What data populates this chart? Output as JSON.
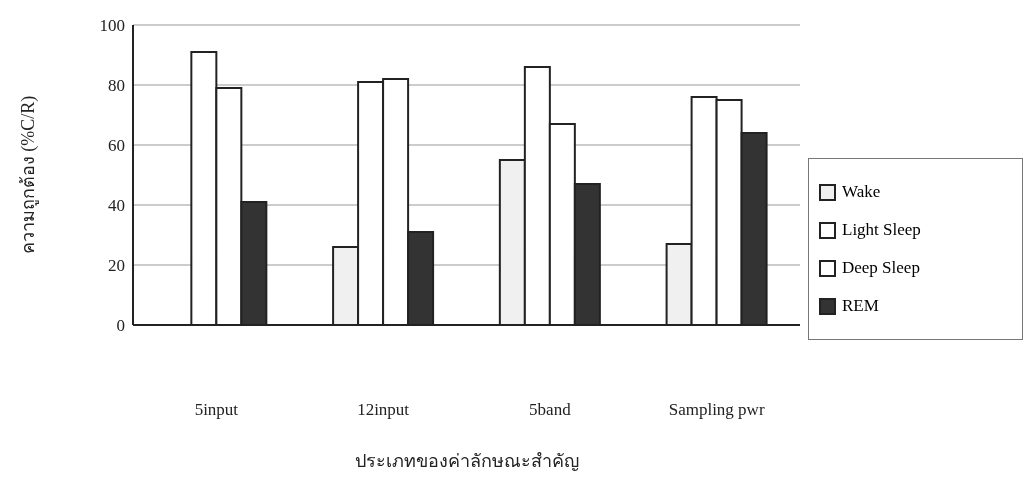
{
  "chart_data": {
    "type": "bar",
    "xlabel": "ประเภทของค่าลักษณะสำคัญ",
    "ylabel": "ความถูกต้อง (%C/R)",
    "categories": [
      "5input",
      "12input",
      "5band",
      "Sampling pwr"
    ],
    "series": [
      {
        "name": "Wake",
        "color": "#f0f0f0",
        "values": [
          0,
          26,
          55,
          27
        ]
      },
      {
        "name": "Light Sleep",
        "color": "#ffffff",
        "values": [
          91,
          81,
          86,
          76
        ]
      },
      {
        "name": "Deep Sleep",
        "color": "#ffffff",
        "values": [
          79,
          82,
          67,
          75
        ]
      },
      {
        "name": "REM",
        "color": "#333333",
        "values": [
          41,
          31,
          47,
          64
        ]
      }
    ],
    "ylim": [
      0,
      100
    ],
    "yticks": [
      0,
      20,
      40,
      60,
      80,
      100
    ],
    "grid": "y",
    "legend": "right"
  }
}
